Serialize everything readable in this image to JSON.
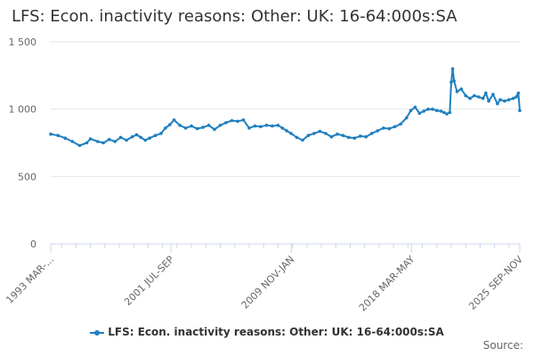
{
  "chart_data": {
    "type": "line",
    "title": "LFS: Econ. inactivity reasons: Other: UK: 16-64:000s:SA",
    "xlabel": "",
    "ylabel": "",
    "ylim": [
      0,
      1500
    ],
    "y_ticks": [
      0,
      500,
      1000,
      1500
    ],
    "y_tick_labels": [
      "0",
      "500",
      "1 000",
      "1 500"
    ],
    "x_range": [
      "1993 MAR-MAY",
      "2025 SEP-NOV"
    ],
    "x_ticks": [
      {
        "label": "1993 MAR-...",
        "x": 1993.25
      },
      {
        "label": "2001 JUL-SEP",
        "x": 2001.583
      },
      {
        "label": "2009 NOV-JAN",
        "x": 2009.917
      },
      {
        "label": "2018 MAR-MAY",
        "x": 2018.25
      },
      {
        "label": "2025 SEP-NOV",
        "x": 2025.75
      }
    ],
    "grid": "horizontal",
    "legend_position": "bottom",
    "series": [
      {
        "name": "LFS: Econ. inactivity reasons: Other: UK: 16-64:000s:SA",
        "color": "#1f7fbf",
        "x": [
          1993.25,
          1993.75,
          1994.25,
          1994.75,
          1995.25,
          1995.75,
          1996.0,
          1996.5,
          1996.9,
          1997.3,
          1997.7,
          1998.1,
          1998.5,
          1998.9,
          1999.2,
          1999.5,
          1999.8,
          2000.1,
          2000.5,
          2000.9,
          2001.2,
          2001.5,
          2001.8,
          2002.2,
          2002.6,
          2003.0,
          2003.4,
          2003.8,
          2004.2,
          2004.6,
          2005.0,
          2005.4,
          2005.8,
          2006.2,
          2006.6,
          2007.0,
          2007.4,
          2007.8,
          2008.2,
          2008.6,
          2009.0,
          2009.3,
          2009.6,
          2009.9,
          2010.3,
          2010.7,
          2011.1,
          2011.5,
          2011.9,
          2012.3,
          2012.7,
          2013.1,
          2013.5,
          2013.9,
          2014.3,
          2014.7,
          2015.1,
          2015.5,
          2015.9,
          2016.3,
          2016.7,
          2017.1,
          2017.5,
          2017.9,
          2018.2,
          2018.5,
          2018.8,
          2019.1,
          2019.4,
          2019.7,
          2020.0,
          2020.3,
          2020.5,
          2020.7,
          2020.9,
          2021.0,
          2021.1,
          2021.2,
          2021.4,
          2021.7,
          2022.0,
          2022.3,
          2022.6,
          2022.9,
          2023.2,
          2023.4,
          2023.6,
          2023.9,
          2024.2,
          2024.4,
          2024.7,
          2025.0,
          2025.3,
          2025.5,
          2025.65,
          2025.75
        ],
        "values": [
          815,
          805,
          785,
          760,
          730,
          750,
          780,
          760,
          750,
          775,
          760,
          790,
          770,
          795,
          810,
          790,
          770,
          785,
          805,
          820,
          860,
          885,
          920,
          880,
          860,
          875,
          855,
          865,
          880,
          850,
          880,
          900,
          915,
          910,
          920,
          860,
          875,
          870,
          880,
          875,
          880,
          860,
          840,
          820,
          790,
          770,
          805,
          820,
          835,
          820,
          795,
          815,
          805,
          790,
          785,
          800,
          795,
          820,
          840,
          860,
          855,
          870,
          890,
          935,
          990,
          1015,
          970,
          985,
          1000,
          1000,
          990,
          985,
          975,
          965,
          975,
          1200,
          1300,
          1210,
          1130,
          1150,
          1100,
          1080,
          1100,
          1090,
          1080,
          1120,
          1060,
          1110,
          1040,
          1070,
          1060,
          1070,
          1080,
          1090,
          1120,
          990
        ]
      }
    ]
  },
  "legend": {
    "label": "LFS: Econ. inactivity reasons: Other: UK: 16-64:000s:SA",
    "color": "#1f7fbf"
  },
  "footer": {
    "source_label": "Source:"
  }
}
